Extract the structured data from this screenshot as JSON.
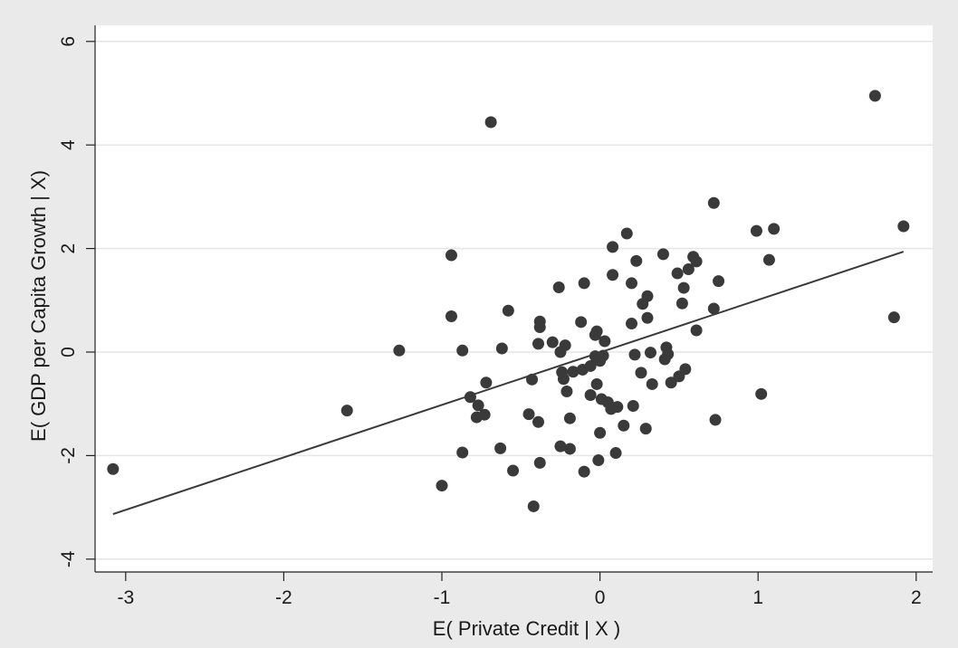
{
  "chart_data": {
    "type": "scatter",
    "xlabel": "E( Private Credit | X )",
    "ylabel": "E( GDP per Capita Growth | X)",
    "xlim": [
      -3.15,
      2.0
    ],
    "ylim": [
      -4.2,
      6.0
    ],
    "xticks": [
      -3,
      -2,
      -1,
      0,
      1,
      2
    ],
    "yticks": [
      -4,
      -2,
      0,
      2,
      4,
      6
    ],
    "grid": "horizontal",
    "colors": {
      "background": "#eaeaea",
      "plot_bg": "#ffffff",
      "marker": "#3a3a3a",
      "line": "#3a3a3a",
      "grid": "#e6e6e6"
    },
    "series": [
      {
        "points": [
          [
            -3.08,
            -2.26
          ],
          [
            -1.6,
            -1.13
          ],
          [
            -1.27,
            0.03
          ],
          [
            -1.0,
            -2.58
          ],
          [
            -0.94,
            1.87
          ],
          [
            -0.94,
            0.69
          ],
          [
            -0.87,
            0.03
          ],
          [
            -0.87,
            -1.94
          ],
          [
            -0.82,
            -0.87
          ],
          [
            -0.78,
            -1.26
          ],
          [
            -0.77,
            -1.03
          ],
          [
            -0.73,
            -1.21
          ],
          [
            -0.72,
            -0.59
          ],
          [
            -0.69,
            4.44
          ],
          [
            -0.63,
            -1.86
          ],
          [
            -0.62,
            0.07
          ],
          [
            -0.58,
            0.8
          ],
          [
            -0.55,
            -2.29
          ],
          [
            -0.45,
            -1.2
          ],
          [
            -0.43,
            -0.53
          ],
          [
            -0.42,
            -2.98
          ],
          [
            -0.39,
            -1.35
          ],
          [
            -0.38,
            0.59
          ],
          [
            -0.38,
            0.48
          ],
          [
            -0.38,
            -2.14
          ],
          [
            -0.39,
            0.16
          ],
          [
            -0.3,
            0.19
          ],
          [
            -0.26,
            1.25
          ],
          [
            -0.25,
            0.0
          ],
          [
            -0.25,
            -1.82
          ],
          [
            -0.24,
            -0.39
          ],
          [
            -0.23,
            -0.52
          ],
          [
            -0.22,
            0.13
          ],
          [
            -0.21,
            -0.76
          ],
          [
            -0.19,
            -1.28
          ],
          [
            -0.19,
            -1.87
          ],
          [
            -0.17,
            -0.38
          ],
          [
            -0.12,
            0.58
          ],
          [
            -0.11,
            -0.34
          ],
          [
            -0.1,
            1.33
          ],
          [
            -0.1,
            -2.31
          ],
          [
            -0.06,
            -0.27
          ],
          [
            -0.06,
            -0.83
          ],
          [
            -0.03,
            0.33
          ],
          [
            -0.03,
            -0.08
          ],
          [
            -0.02,
            0.4
          ],
          [
            -0.02,
            -0.62
          ],
          [
            -0.01,
            -2.09
          ],
          [
            0.0,
            -1.56
          ],
          [
            0.0,
            -0.17
          ],
          [
            0.01,
            -0.91
          ],
          [
            0.02,
            -0.07
          ],
          [
            0.03,
            0.21
          ],
          [
            0.05,
            -0.97
          ],
          [
            0.07,
            -1.1
          ],
          [
            0.08,
            2.03
          ],
          [
            0.08,
            1.49
          ],
          [
            0.1,
            -1.95
          ],
          [
            0.11,
            -1.06
          ],
          [
            0.15,
            -1.42
          ],
          [
            0.17,
            2.29
          ],
          [
            0.2,
            0.55
          ],
          [
            0.2,
            1.33
          ],
          [
            0.21,
            -1.04
          ],
          [
            0.22,
            -0.05
          ],
          [
            0.23,
            1.76
          ],
          [
            0.26,
            -0.4
          ],
          [
            0.27,
            0.93
          ],
          [
            0.29,
            -1.48
          ],
          [
            0.3,
            1.08
          ],
          [
            0.3,
            0.66
          ],
          [
            0.32,
            -0.01
          ],
          [
            0.33,
            -0.62
          ],
          [
            0.4,
            1.89
          ],
          [
            0.41,
            -0.14
          ],
          [
            0.42,
            0.09
          ],
          [
            0.43,
            -0.04
          ],
          [
            0.45,
            -0.59
          ],
          [
            0.49,
            1.52
          ],
          [
            0.5,
            -0.47
          ],
          [
            0.52,
            0.94
          ],
          [
            0.53,
            1.24
          ],
          [
            0.54,
            -0.33
          ],
          [
            0.56,
            1.6
          ],
          [
            0.59,
            1.84
          ],
          [
            0.61,
            1.75
          ],
          [
            0.61,
            0.42
          ],
          [
            0.72,
            2.88
          ],
          [
            0.72,
            0.84
          ],
          [
            0.73,
            -1.31
          ],
          [
            0.75,
            1.37
          ],
          [
            0.99,
            2.34
          ],
          [
            1.02,
            -0.81
          ],
          [
            1.07,
            1.78
          ],
          [
            1.1,
            2.38
          ],
          [
            1.74,
            4.95
          ],
          [
            1.86,
            0.67
          ],
          [
            1.92,
            2.43
          ]
        ]
      }
    ],
    "fit_line": {
      "x": [
        -3.08,
        1.92
      ],
      "y": [
        -3.13,
        1.94
      ]
    }
  }
}
